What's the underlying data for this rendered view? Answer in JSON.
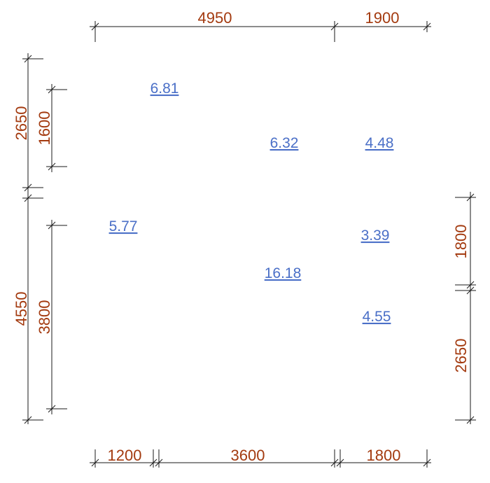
{
  "colors": {
    "dimension_text": "#a33a0f",
    "area_text": "#4a6fc7",
    "line": "#1a1a1a"
  },
  "dimensions": {
    "top": [
      "4950",
      "1900"
    ],
    "bottom": [
      "1200",
      "3600",
      "1800"
    ],
    "left_outer": [
      "2650",
      "4550"
    ],
    "left_inner": [
      "1600",
      "3800"
    ],
    "right": [
      "1800",
      "2650"
    ]
  },
  "areas": [
    "6.81",
    "6.32",
    "4.48",
    "5.77",
    "3.39",
    "16.18",
    "4.55"
  ]
}
